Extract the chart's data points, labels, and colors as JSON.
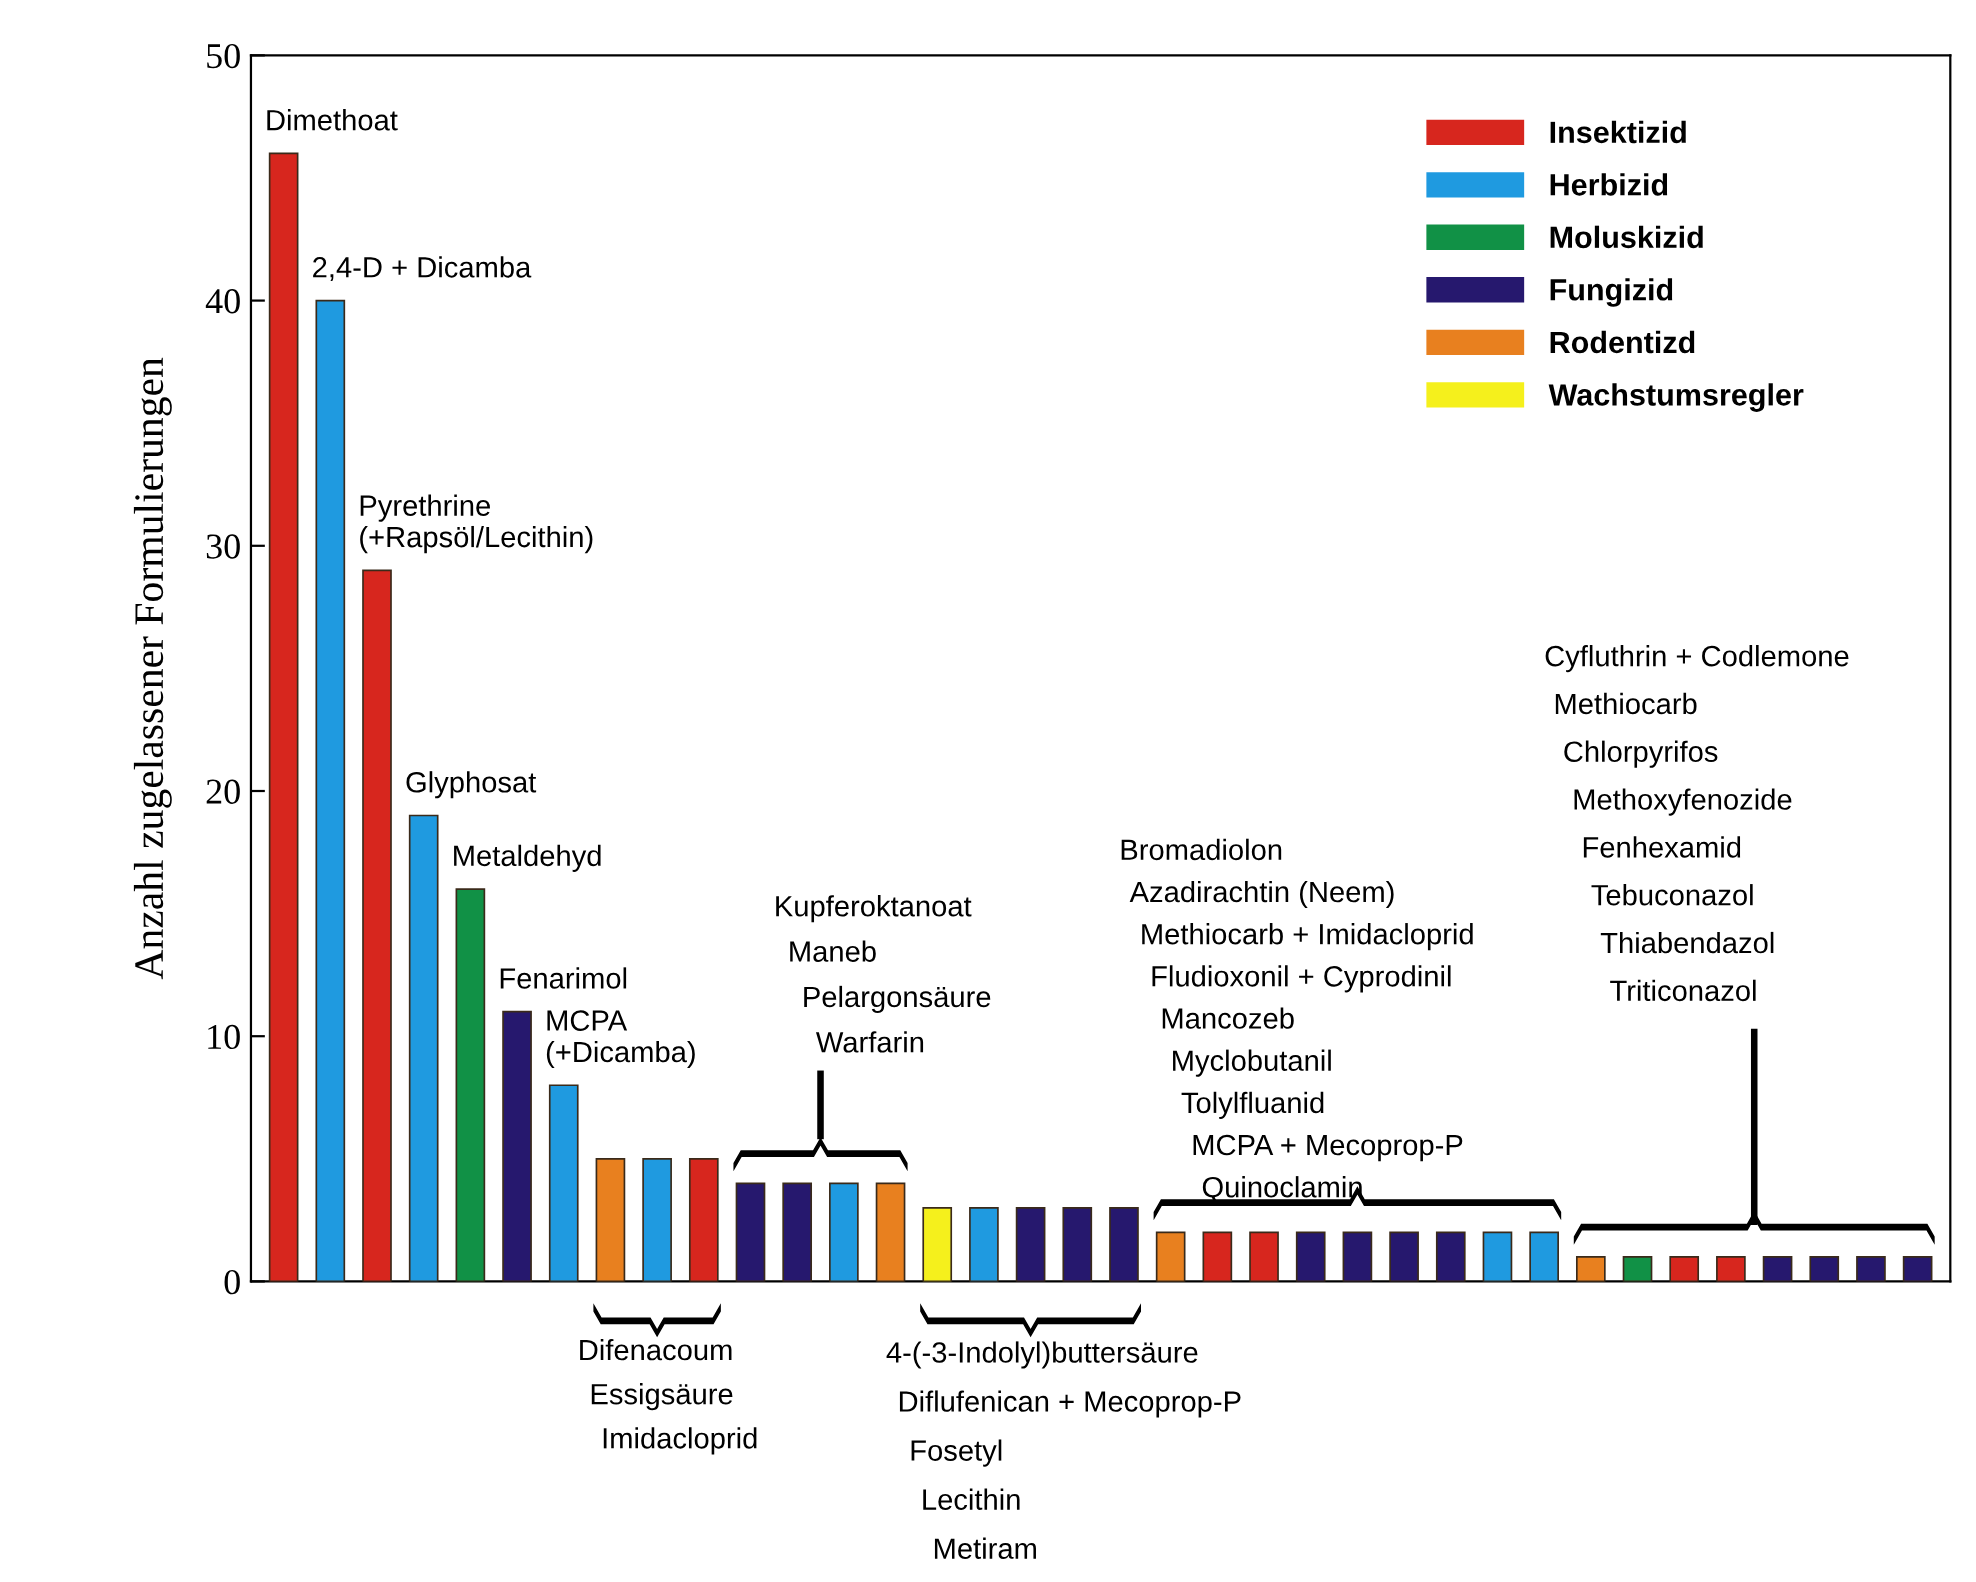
{
  "chart_data": {
    "type": "bar",
    "ylabel": "Anzahl zugelassener Formulierungen",
    "categories": [
      null,
      null,
      null,
      null,
      null,
      null,
      null,
      null,
      null,
      null,
      null,
      null,
      null,
      null,
      null,
      null,
      null,
      null,
      null,
      null,
      null,
      null,
      null,
      null,
      null,
      null,
      null,
      null,
      null,
      null,
      null,
      null,
      null,
      null,
      null,
      null
    ],
    "series": [
      {
        "name": "Insektizid",
        "color": "#d7261e",
        "values": [
          46,
          null,
          29,
          null,
          null,
          null,
          null,
          null,
          null,
          5,
          null,
          null,
          null,
          null,
          null,
          null,
          null,
          null,
          null,
          null,
          2,
          2,
          null,
          null,
          null,
          null,
          null,
          null,
          null,
          null,
          1,
          1,
          null,
          null,
          null,
          null
        ]
      },
      {
        "name": "Herbizid",
        "color": "#1f9ae0",
        "values": [
          null,
          40,
          null,
          19,
          null,
          null,
          8,
          null,
          5,
          null,
          null,
          null,
          4,
          null,
          null,
          3,
          null,
          null,
          null,
          null,
          null,
          null,
          null,
          null,
          null,
          null,
          2,
          2,
          null,
          null,
          null,
          null,
          null,
          null,
          null,
          null
        ]
      },
      {
        "name": "Moluskizid",
        "color": "#119146",
        "values": [
          null,
          null,
          null,
          null,
          16,
          null,
          null,
          null,
          null,
          null,
          null,
          null,
          null,
          null,
          null,
          null,
          null,
          null,
          null,
          null,
          null,
          null,
          null,
          null,
          null,
          null,
          null,
          null,
          null,
          1,
          null,
          null,
          null,
          null,
          null,
          null
        ]
      },
      {
        "name": "Fungizid",
        "color": "#26186e",
        "values": [
          null,
          null,
          null,
          null,
          null,
          11,
          null,
          null,
          null,
          null,
          4,
          4,
          null,
          null,
          null,
          null,
          3,
          3,
          3,
          null,
          null,
          null,
          2,
          2,
          2,
          2,
          null,
          null,
          null,
          null,
          null,
          null,
          1,
          1,
          1,
          1
        ]
      },
      {
        "name": "Rodentizd",
        "color": "#e8801f",
        "values": [
          null,
          null,
          null,
          null,
          null,
          null,
          null,
          5,
          null,
          null,
          null,
          null,
          null,
          4,
          null,
          null,
          null,
          null,
          null,
          2,
          null,
          null,
          null,
          null,
          null,
          null,
          null,
          null,
          1,
          null,
          null,
          null,
          null,
          null,
          null,
          null
        ]
      },
      {
        "name": "Wachstumsregler",
        "color": "#f5f01c",
        "values": [
          null,
          null,
          null,
          null,
          null,
          null,
          null,
          null,
          null,
          null,
          null,
          null,
          null,
          null,
          3,
          null,
          null,
          null,
          null,
          null,
          null,
          null,
          null,
          null,
          null,
          null,
          null,
          null,
          null,
          null,
          null,
          null,
          null,
          null,
          null,
          null
        ]
      }
    ],
    "ylim": [
      0,
      50
    ],
    "yticks": [
      0,
      10,
      20,
      30,
      40,
      50
    ],
    "legend": "top right",
    "grid": false,
    "annotations": [
      "Dimethoat",
      "2,4-D + Dicamba",
      "Pyrethrine\n(+Rapsöl/Lecithin)",
      "Glyphosat",
      "Metaldehyd",
      "Fenarimol",
      "MCPA\n(+Dicamba)",
      "Difenacoum",
      "Essigsäure",
      "Imidacloprid",
      "Kupferoktanoat",
      "Maneb",
      "Pelargonsäure",
      "Warfarin",
      "4-(-3-Indolyl)buttersäure",
      "Diflufenican + Mecoprop-P",
      "Fosetyl",
      "Lecithin",
      "Metiram",
      "Bromadiolon",
      "Azadirachtin (Neem)",
      "Methiocarb + Imidacloprid",
      "Fludioxonil + Cyprodinil",
      "Mancozeb",
      "Myclobutanil",
      "Tolylfluanid",
      "MCPA + Mecoprop-P",
      "Quinoclamin",
      "Cyfluthrin + Codlemone",
      "Methiocarb",
      "Chlorpyrifos",
      "Methoxyfenozide",
      "Fenhexamid",
      "Tebuconazol",
      "Thiabendazol",
      "Triticonazol"
    ]
  }
}
